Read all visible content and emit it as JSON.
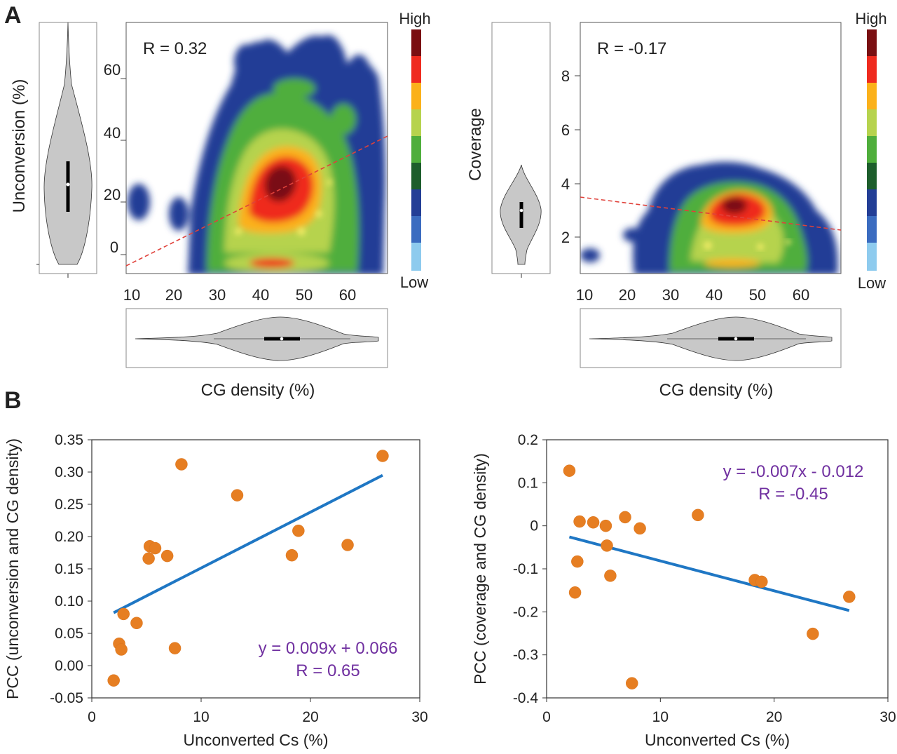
{
  "panel_labels": [
    "A",
    "B"
  ],
  "colorbar": {
    "high_label": "High",
    "low_label": "Low",
    "colors": [
      "#1a1a8c",
      "#7a0f12",
      "#ef2b1f",
      "#fbb11a",
      "#b6d34e",
      "#4fae3c",
      "#1d5e2c",
      "#233e96",
      "#3b6cc0",
      "#8ecbee"
    ]
  },
  "chart_data": [
    {
      "type": "heatmap",
      "title": "",
      "annotation": "R = 0.32",
      "xlabel": "CG density (%)",
      "ylabel": "Unconversion (%)",
      "xlim": [
        8,
        69
      ],
      "ylim": [
        -8,
        77
      ],
      "xticks": [
        10,
        20,
        30,
        40,
        50,
        60
      ],
      "yticks": [
        0,
        20,
        40,
        60
      ],
      "trend_line": {
        "x": [
          8,
          69
        ],
        "y": [
          -7,
          41
        ]
      },
      "colorbar": [
        "Low",
        "High"
      ],
      "marginal_violins": [
        "Unconversion (%)",
        "CG density (%)"
      ]
    },
    {
      "type": "heatmap",
      "title": "",
      "annotation": "R = -0.17",
      "xlabel": "CG density (%)",
      "ylabel": "Coverage",
      "xlim": [
        9,
        69
      ],
      "ylim": [
        0.7,
        9.9
      ],
      "xticks": [
        10,
        20,
        30,
        40,
        50,
        60
      ],
      "yticks": [
        2,
        4,
        6,
        8
      ],
      "trend_line": {
        "x": [
          9,
          69
        ],
        "y": [
          3.5,
          2.3
        ]
      },
      "colorbar": [
        "Low",
        "High"
      ],
      "marginal_violins": [
        "Coverage",
        "CG density (%)"
      ]
    },
    {
      "type": "scatter",
      "title": "",
      "xlabel": "Unconverted Cs (%)",
      "ylabel": "PCC (unconversion and CG density)",
      "xlim": [
        0,
        30
      ],
      "ylim": [
        -0.05,
        0.35
      ],
      "xticks": [
        0,
        10,
        20,
        30
      ],
      "yticks": [
        -0.05,
        0.0,
        0.05,
        0.1,
        0.15,
        0.2,
        0.25,
        0.3,
        0.35
      ],
      "ytick_labels": [
        "-0.05",
        "0.00",
        "0.05",
        "0.10",
        "0.15",
        "0.20",
        "0.25",
        "0.30",
        "0.35"
      ],
      "x": [
        2.0,
        2.5,
        2.7,
        2.9,
        4.1,
        5.2,
        5.3,
        5.8,
        6.9,
        7.6,
        8.2,
        13.3,
        18.3,
        18.9,
        23.4,
        26.6
      ],
      "y": [
        -0.023,
        0.034,
        0.025,
        0.08,
        0.066,
        0.166,
        0.185,
        0.182,
        0.17,
        0.027,
        0.312,
        0.264,
        0.171,
        0.209,
        0.187,
        0.325
      ],
      "fit": {
        "x": [
          2.0,
          26.6
        ],
        "y": [
          0.082,
          0.295
        ]
      },
      "equation": "y = 0.009x + 0.066",
      "r_label": "R = 0.65"
    },
    {
      "type": "scatter",
      "title": "",
      "xlabel": "Unconverted Cs (%)",
      "ylabel": "PCC (coverage and CG density)",
      "xlim": [
        0,
        30
      ],
      "ylim": [
        -0.4,
        0.2
      ],
      "xticks": [
        0,
        10,
        20,
        30
      ],
      "yticks": [
        -0.4,
        -0.3,
        -0.2,
        -0.1,
        0,
        0.1,
        0.2
      ],
      "ytick_labels": [
        "-0.4",
        "-0.3",
        "-0.2",
        "-0.1",
        "0",
        "0.1",
        "0.2"
      ],
      "x": [
        2.0,
        2.5,
        2.7,
        2.9,
        4.1,
        5.2,
        5.3,
        5.6,
        6.9,
        7.5,
        8.2,
        13.3,
        18.3,
        18.9,
        23.4,
        26.6
      ],
      "y": [
        0.128,
        -0.155,
        -0.083,
        0.01,
        0.008,
        0.0,
        -0.046,
        -0.116,
        0.02,
        -0.366,
        -0.006,
        0.025,
        -0.126,
        -0.13,
        -0.251,
        -0.165
      ],
      "fit": {
        "x": [
          2.0,
          26.6
        ],
        "y": [
          -0.026,
          -0.197
        ]
      },
      "equation": "y = -0.007x - 0.012",
      "r_label": "R = -0.45"
    }
  ]
}
